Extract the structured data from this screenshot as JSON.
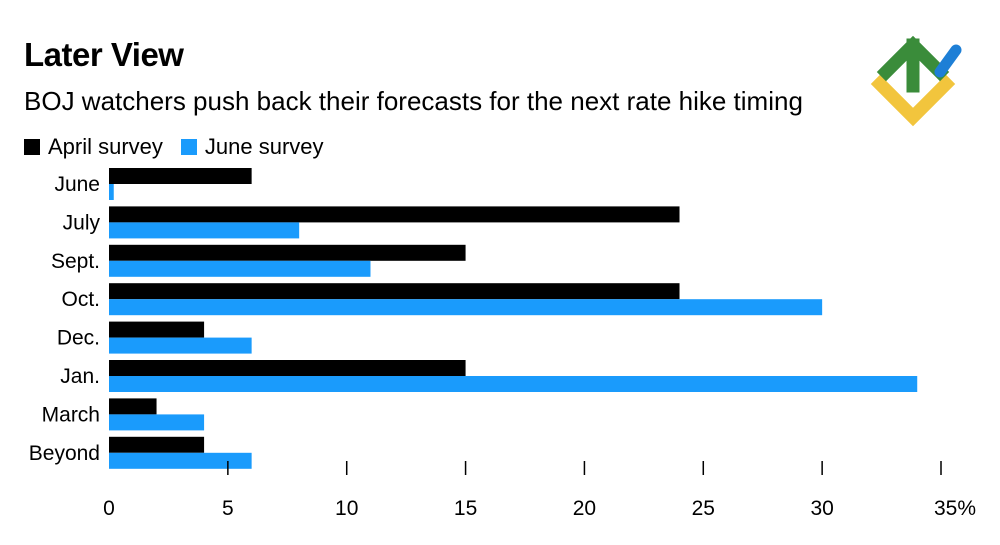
{
  "chart_data": {
    "type": "bar",
    "orientation": "horizontal",
    "title": "Later View",
    "subtitle": "BOJ watchers push back their forecasts for the next rate hike timing",
    "categories": [
      "June",
      "July",
      "Sept.",
      "Oct.",
      "Dec.",
      "Jan.",
      "March",
      "Beyond"
    ],
    "series": [
      {
        "name": "April survey",
        "color": "#000000",
        "values": [
          6,
          24,
          15,
          24,
          4,
          15,
          2,
          4
        ]
      },
      {
        "name": "June survey",
        "color": "#1a9bfc",
        "values": [
          0.2,
          8,
          11,
          30,
          6,
          34,
          4,
          6
        ]
      }
    ],
    "xlim": [
      0,
      35
    ],
    "xticks": [
      0,
      5,
      10,
      15,
      20,
      25,
      30,
      35
    ],
    "xtick_labels": [
      "0",
      "5",
      "10",
      "15",
      "20",
      "25",
      "30",
      "35%"
    ],
    "xlabel": "",
    "ylabel": "",
    "legend_position": "top-left",
    "grid": false
  },
  "logo": {
    "name": "litefinance-logo",
    "colors": [
      "#3a8c3a",
      "#1e7fd6",
      "#f2c53d"
    ]
  }
}
